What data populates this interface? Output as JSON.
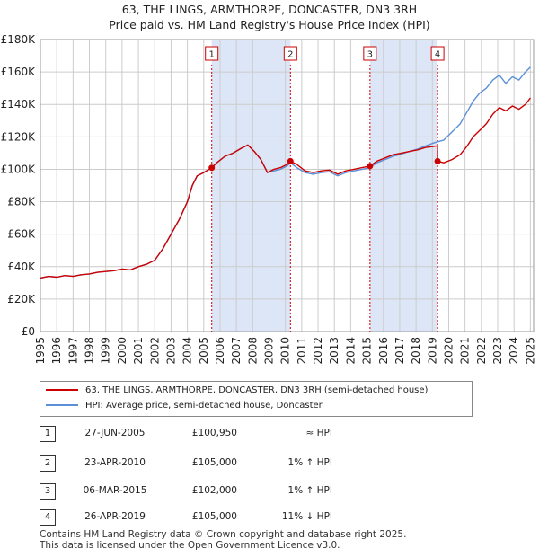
{
  "header": {
    "title": "63, THE LINGS, ARMTHORPE, DONCASTER, DN3 3RH",
    "subtitle": "Price paid vs. HM Land Registry's House Price Index (HPI)"
  },
  "colors": {
    "property": "#cc0000",
    "hpi": "#5b8fd6",
    "shade": "#dde6f7",
    "grid": "#cccccc"
  },
  "chart_data": {
    "type": "line",
    "xlim": [
      1995,
      2025.2
    ],
    "ylim": [
      0,
      180000
    ],
    "y_ticks": [
      0,
      20000,
      40000,
      60000,
      80000,
      100000,
      120000,
      140000,
      160000,
      180000
    ],
    "y_tick_labels": [
      "£0",
      "£20K",
      "£40K",
      "£60K",
      "£80K",
      "£100K",
      "£120K",
      "£140K",
      "£160K",
      "£180K"
    ],
    "x_ticks": [
      1995,
      1996,
      1997,
      1998,
      1999,
      2000,
      2001,
      2002,
      2003,
      2004,
      2005,
      2006,
      2007,
      2008,
      2009,
      2010,
      2011,
      2012,
      2013,
      2014,
      2015,
      2016,
      2017,
      2018,
      2019,
      2020,
      2021,
      2022,
      2023,
      2024,
      2025
    ],
    "x_tick_labels": [
      "1995",
      "1996",
      "1997",
      "1998",
      "1999",
      "2000",
      "2001",
      "2002",
      "2003",
      "2004",
      "2005",
      "2006",
      "2007",
      "2008",
      "2009",
      "2010",
      "2011",
      "2012",
      "2013",
      "2014",
      "2015",
      "2016",
      "2017",
      "2018",
      "2019",
      "2020",
      "2021",
      "2022",
      "2023",
      "2024",
      "2025"
    ],
    "shaded_periods": [
      [
        2005.49,
        2010.31
      ],
      [
        2015.18,
        2019.32
      ]
    ],
    "series": [
      {
        "name": "63, THE LINGS, ARMTHORPE, DONCASTER, DN3 3RH (semi-detached house)",
        "x": [
          1995.0,
          1995.5,
          1996.0,
          1996.5,
          1997.0,
          1997.5,
          1998.0,
          1998.5,
          1999.0,
          1999.5,
          2000.0,
          2000.5,
          2001.0,
          2001.5,
          2002.0,
          2002.5,
          2003.0,
          2003.5,
          2004.0,
          2004.3,
          2004.6,
          2005.0,
          2005.49,
          2005.8,
          2006.3,
          2006.8,
          2007.3,
          2007.7,
          2008.1,
          2008.5,
          2008.9,
          2009.3,
          2009.7,
          2010.1,
          2010.31,
          2010.7,
          2011.2,
          2011.7,
          2012.2,
          2012.7,
          2013.2,
          2013.7,
          2014.2,
          2014.7,
          2015.18,
          2015.6,
          2016.1,
          2016.6,
          2017.1,
          2017.6,
          2018.1,
          2018.6,
          2019.0,
          2019.31,
          2019.32,
          2019.7,
          2020.2,
          2020.7,
          2021.1,
          2021.5,
          2021.9,
          2022.3,
          2022.7,
          2023.1,
          2023.5,
          2023.9,
          2024.3,
          2024.7,
          2025.0
        ],
        "values": [
          33000,
          34000,
          33500,
          34500,
          34000,
          35000,
          35500,
          36500,
          37000,
          37500,
          38500,
          38000,
          40000,
          41500,
          44000,
          51000,
          60000,
          69000,
          80000,
          90000,
          96000,
          98000,
          100950,
          104000,
          108000,
          110000,
          113000,
          115000,
          111000,
          106000,
          98000,
          100000,
          101000,
          103000,
          105000,
          103000,
          99000,
          98000,
          99000,
          99500,
          97000,
          99000,
          100000,
          101000,
          102000,
          105000,
          107000,
          109000,
          110000,
          111000,
          112000,
          113500,
          114000,
          114500,
          105000,
          104000,
          106000,
          109000,
          114000,
          120000,
          124000,
          128000,
          134000,
          138000,
          136000,
          139000,
          137000,
          140000,
          144000
        ]
      },
      {
        "name": "HPI: Average price, semi-detached house, Doncaster",
        "x": [
          1995.0,
          1995.5,
          1996.0,
          1996.5,
          1997.0,
          1997.5,
          1998.0,
          1998.5,
          1999.0,
          1999.5,
          2000.0,
          2000.5,
          2001.0,
          2001.5,
          2002.0,
          2002.5,
          2003.0,
          2003.5,
          2004.0,
          2004.3,
          2004.6,
          2005.0,
          2005.49,
          2005.8,
          2006.3,
          2006.8,
          2007.3,
          2007.7,
          2008.1,
          2008.5,
          2008.9,
          2009.3,
          2009.7,
          2010.1,
          2010.31,
          2010.7,
          2011.2,
          2011.7,
          2012.2,
          2012.7,
          2013.2,
          2013.7,
          2014.2,
          2014.7,
          2015.18,
          2015.6,
          2016.1,
          2016.6,
          2017.1,
          2017.6,
          2018.1,
          2018.6,
          2019.0,
          2019.32,
          2019.7,
          2020.2,
          2020.7,
          2021.1,
          2021.5,
          2021.9,
          2022.3,
          2022.7,
          2023.1,
          2023.5,
          2023.9,
          2024.3,
          2024.7,
          2025.0
        ],
        "values": [
          33000,
          34000,
          33500,
          34500,
          34000,
          35000,
          35500,
          36500,
          37000,
          37500,
          38500,
          38000,
          40000,
          41500,
          44000,
          51000,
          60000,
          69000,
          80000,
          90000,
          96000,
          98000,
          101000,
          104000,
          108000,
          110000,
          113000,
          115000,
          111000,
          106000,
          98000,
          99000,
          100000,
          102000,
          104000,
          101000,
          98000,
          97000,
          98000,
          98500,
          96000,
          98000,
          99000,
          100000,
          101000,
          104000,
          106000,
          108000,
          109500,
          111000,
          112500,
          114500,
          116000,
          117000,
          118000,
          123000,
          128000,
          135000,
          142000,
          147000,
          150000,
          155000,
          158000,
          153000,
          157000,
          155000,
          160000,
          163000
        ]
      }
    ],
    "sales": [
      {
        "label": "1",
        "x": 2005.49,
        "price": 100950
      },
      {
        "label": "2",
        "x": 2010.31,
        "price": 105000
      },
      {
        "label": "3",
        "x": 2015.18,
        "price": 102000
      },
      {
        "label": "4",
        "x": 2019.32,
        "price": 105000
      }
    ]
  },
  "legend": {
    "property_label": "63, THE LINGS, ARMTHORPE, DONCASTER, DN3 3RH (semi-detached house)",
    "hpi_label": "HPI: Average price, semi-detached house, Doncaster"
  },
  "sales_table": [
    {
      "num": "1",
      "date": "27-JUN-2005",
      "price": "£100,950",
      "hpi": "≈ HPI"
    },
    {
      "num": "2",
      "date": "23-APR-2010",
      "price": "£105,000",
      "hpi": "1% ↑ HPI"
    },
    {
      "num": "3",
      "date": "06-MAR-2015",
      "price": "£102,000",
      "hpi": "1% ↑ HPI"
    },
    {
      "num": "4",
      "date": "26-APR-2019",
      "price": "£105,000",
      "hpi": "11% ↓ HPI"
    }
  ],
  "footer": {
    "line1": "Contains HM Land Registry data © Crown copyright and database right 2025.",
    "line2": "This data is licensed under the Open Government Licence v3.0."
  }
}
